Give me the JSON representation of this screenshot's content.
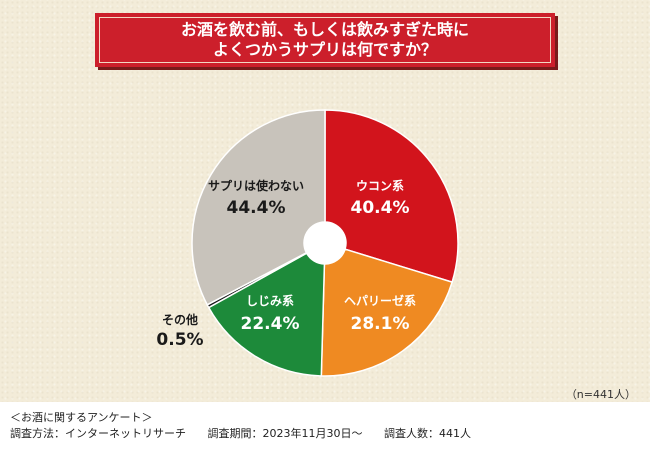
{
  "header": {
    "title_line_1": "お酒を飲む前、もしくは飲みすぎた時に",
    "title_line_2": "よくつかうサプリは何ですか？",
    "banner_color": "#cc1f2b"
  },
  "chart_data": {
    "type": "pie",
    "donut": true,
    "start": "12 o'clock",
    "direction": "clockwise",
    "slices": [
      {
        "label": "ウコン系",
        "value": 40.4,
        "value_text": "40.4%",
        "color": "#d2141c"
      },
      {
        "label": "ヘパリーゼ系",
        "value": 28.1,
        "value_text": "28.1%",
        "color": "#ef8a22"
      },
      {
        "label": "しじみ系",
        "value": 22.4,
        "value_text": "22.4%",
        "color": "#1d8a3a"
      },
      {
        "label": "その他",
        "value": 0.5,
        "value_text": "0.5%",
        "color": "#1a1a1a"
      },
      {
        "label": "サプリは使わない",
        "value": 44.4,
        "value_text": "44.4%",
        "color": "#c8c3bb"
      }
    ]
  },
  "sample_size": "（n=441人）",
  "footer": {
    "survey_name": "＜お酒に関するアンケート＞",
    "method": "調査方法：インターネットリサーチ",
    "period": "調査期間：2023年11月30日〜",
    "respondents": "調査人数：441人"
  }
}
